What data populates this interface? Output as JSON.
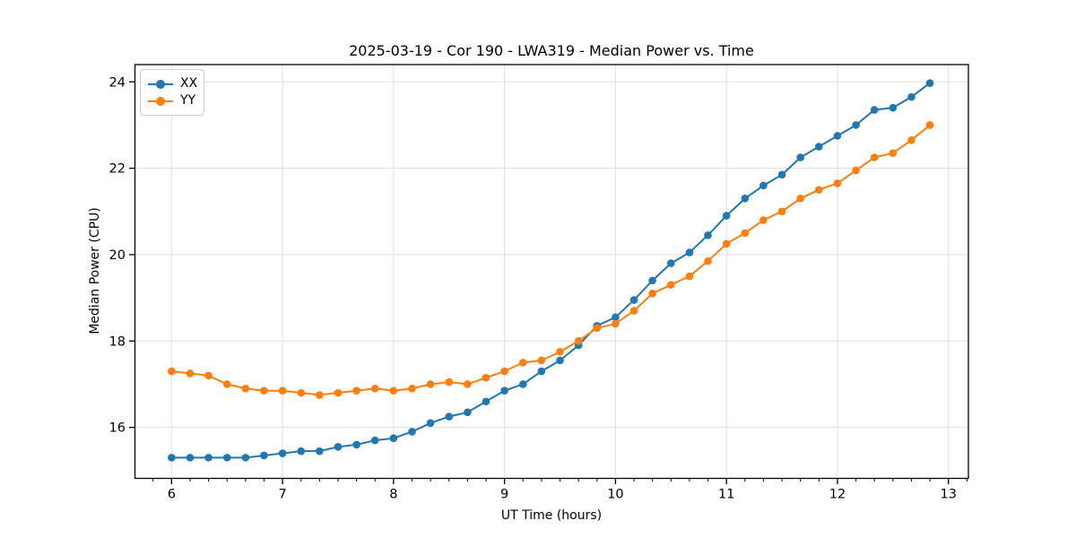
{
  "chart_data": {
    "type": "line",
    "title": "2025-03-19 - Cor 190 - LWA319 - Median Power vs. Time",
    "xlabel": "UT Time (hours)",
    "ylabel": "Median Power (CPU)",
    "x": [
      6,
      6.167,
      6.333,
      6.5,
      6.667,
      6.833,
      7,
      7.167,
      7.333,
      7.5,
      7.667,
      7.833,
      8,
      8.167,
      8.333,
      8.5,
      8.667,
      8.833,
      9,
      9.167,
      9.333,
      9.5,
      9.667,
      9.833,
      10,
      10.167,
      10.333,
      10.5,
      10.667,
      10.833,
      11,
      11.167,
      11.333,
      11.5,
      11.667,
      11.833,
      12,
      12.167,
      12.333,
      12.5,
      12.667,
      12.833
    ],
    "series": [
      {
        "name": "XX",
        "color": "#1f77b4",
        "values": [
          15.3,
          15.3,
          15.3,
          15.3,
          15.3,
          15.35,
          15.4,
          15.45,
          15.45,
          15.55,
          15.6,
          15.7,
          15.75,
          15.9,
          16.1,
          16.25,
          16.35,
          16.6,
          16.85,
          17.0,
          17.3,
          17.55,
          17.9,
          18.35,
          18.55,
          18.95,
          19.4,
          19.8,
          20.05,
          20.45,
          20.9,
          21.3,
          21.6,
          21.85,
          22.25,
          22.5,
          22.75,
          23.0,
          23.35,
          23.4,
          23.65,
          23.97
        ]
      },
      {
        "name": "YY",
        "color": "#ff7f0e",
        "values": [
          17.3,
          17.25,
          17.2,
          17.0,
          16.9,
          16.85,
          16.85,
          16.8,
          16.75,
          16.8,
          16.85,
          16.9,
          16.85,
          16.9,
          17.0,
          17.05,
          17.0,
          17.15,
          17.3,
          17.5,
          17.55,
          17.75,
          18.0,
          18.3,
          18.4,
          18.7,
          19.1,
          19.3,
          19.5,
          19.85,
          20.25,
          20.5,
          20.8,
          21.0,
          21.3,
          21.5,
          21.65,
          21.95,
          22.25,
          22.35,
          22.65,
          23.0
        ]
      }
    ],
    "xlim": [
      5.67,
      13.18
    ],
    "ylim": [
      14.82,
      24.4
    ],
    "xticks": [
      6,
      7,
      8,
      9,
      10,
      11,
      12,
      13
    ],
    "yticks": [
      16,
      18,
      20,
      22,
      24
    ],
    "x_minor_interval": 0.1667,
    "grid": "major",
    "legend_position": "upper left",
    "marker": "circle"
  },
  "legend": {
    "items": [
      {
        "label": "XX",
        "color": "#1f77b4"
      },
      {
        "label": "YY",
        "color": "#ff7f0e"
      }
    ]
  },
  "colors": {
    "background": "#ffffff",
    "grid": "#e0e0e0",
    "axis": "#000000",
    "tick_label": "#000000",
    "series_xx": "#1f77b4",
    "series_yy": "#ff7f0e"
  }
}
